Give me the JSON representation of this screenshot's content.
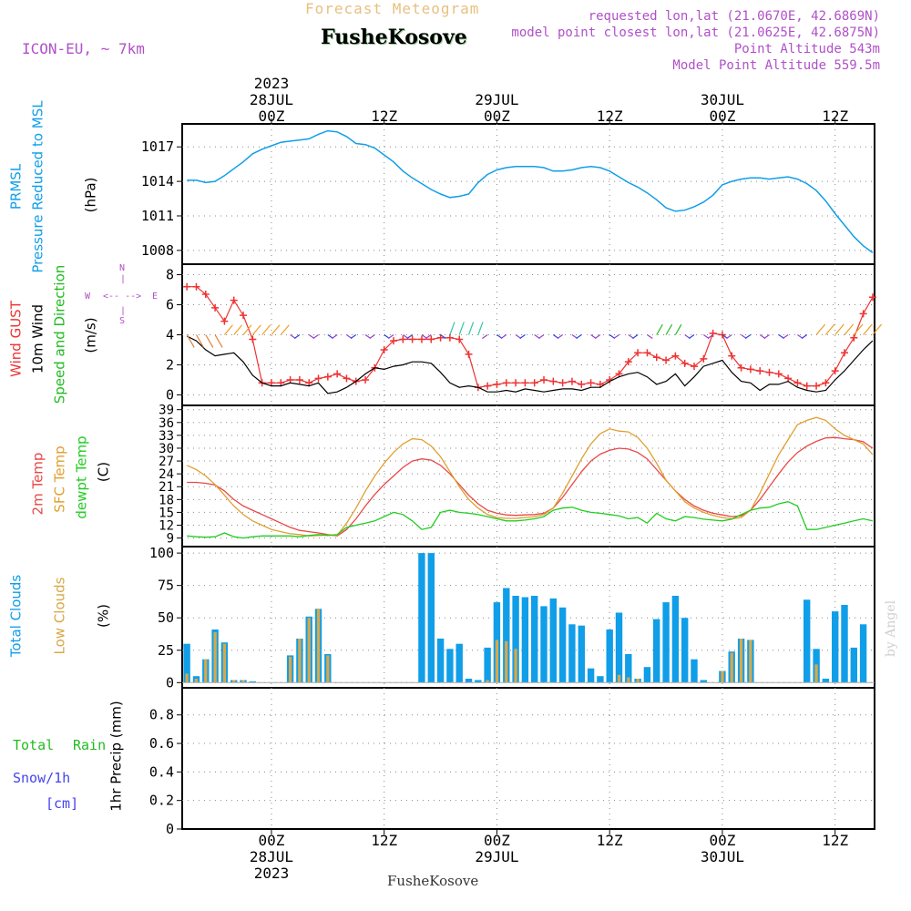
{
  "header": {
    "forecast_title": "Forecast Meteogram",
    "station": "FusheKosove",
    "model": "ICON-EU, ~ 7km",
    "requested": "requested lon,lat (21.0670E, 42.6869N)",
    "closest": "model point closest lon,lat (21.0625E, 42.6875N)",
    "point_alt": "Point Altitude 543m",
    "model_alt": "Model Point Altitude 559.5m",
    "credit": "by Angel"
  },
  "colors": {
    "pressure": "#109ee8",
    "gust": "#ee3333",
    "wind": "#000000",
    "dir_green": "#22bb22",
    "temp": "#e84848",
    "sfc": "#e0a030",
    "dew": "#22cc22",
    "total_clouds": "#109ee8",
    "low_clouds": "#d8a848",
    "rain": "#22bb22",
    "snow": "#4444ee",
    "model": "#b050c8",
    "title": "#e8c080"
  },
  "time_axis": {
    "top_labels": [
      {
        "t": 0,
        "lines": [
          "2023",
          "28JUL",
          "00Z"
        ]
      },
      {
        "t": 12,
        "lines": [
          "12Z"
        ]
      },
      {
        "t": 24,
        "lines": [
          "29JUL",
          "00Z"
        ]
      },
      {
        "t": 36,
        "lines": [
          "12Z"
        ]
      },
      {
        "t": 48,
        "lines": [
          "30JUL",
          "00Z"
        ]
      },
      {
        "t": 60,
        "lines": [
          "12Z"
        ]
      }
    ],
    "bottom_labels": [
      {
        "t": 0,
        "lines": [
          "00Z",
          "28JUL",
          "2023"
        ]
      },
      {
        "t": 12,
        "lines": [
          "12Z"
        ]
      },
      {
        "t": 24,
        "lines": [
          "00Z",
          "29JUL"
        ]
      },
      {
        "t": 36,
        "lines": [
          "12Z"
        ]
      },
      {
        "t": 48,
        "lines": [
          "00Z",
          "30JUL"
        ]
      },
      {
        "t": 60,
        "lines": [
          "12Z"
        ]
      }
    ],
    "bottom_station": "FusheKosove"
  },
  "panels": {
    "pressure": {
      "label1": "PRMSL",
      "label2": "Pressure Reduced to MSL",
      "unit": "(hPa)"
    },
    "wind": {
      "label_gust": "Wind GUST",
      "label_wind": "10m Wind",
      "label_dir": "Speed and Direction",
      "unit": "(m/s)",
      "compass_n": "N",
      "compass_s": "S",
      "compass_w": "W",
      "compass_e": "E",
      "compass_bar": "|",
      "compass_arrows": "<-- -->"
    },
    "temp": {
      "label1": "2m Temp",
      "label2": "SFC Temp",
      "label3": "dewpt Temp",
      "unit": "(C)"
    },
    "clouds": {
      "label1": "Total Clouds",
      "label2": "Low Clouds",
      "unit": "(%)"
    },
    "precip": {
      "label_total": "Total",
      "label_rain": "Rain",
      "label_snow": "Snow/1h",
      "label_cm": "[cm]",
      "unit": "1hr Precip (mm)"
    }
  },
  "chart_data": [
    {
      "type": "line",
      "ylabel": "(hPa)",
      "y_ticks": [
        "1008",
        "1011",
        "1014",
        "1017"
      ],
      "ylim": [
        1006.8,
        1019
      ],
      "x": [
        -9,
        -8,
        -7,
        -6,
        -5,
        -4,
        -3,
        -2,
        -1,
        0,
        1,
        2,
        3,
        4,
        5,
        6,
        7,
        8,
        9,
        10,
        11,
        12,
        13,
        14,
        15,
        16,
        17,
        18,
        19,
        20,
        21,
        22,
        23,
        24,
        25,
        26,
        27,
        28,
        29,
        30,
        31,
        32,
        33,
        34,
        35,
        36,
        37,
        38,
        39,
        40,
        41,
        42,
        43,
        44,
        45,
        46,
        47,
        48,
        49,
        50,
        51,
        52,
        53,
        54,
        55,
        56,
        57,
        58,
        59,
        60,
        61,
        62,
        63,
        64
      ],
      "series": [
        {
          "values": [
            1014.1,
            1014.1,
            1013.9,
            1014.0,
            1014.5,
            1015.1,
            1015.7,
            1016.4,
            1016.8,
            1017.1,
            1017.4,
            1017.5,
            1017.6,
            1017.7,
            1018.1,
            1018.4,
            1018.3,
            1017.9,
            1017.3,
            1017.2,
            1016.9,
            1016.3,
            1015.7,
            1014.9,
            1014.3,
            1013.8,
            1013.3,
            1012.9,
            1012.6,
            1012.7,
            1012.9,
            1013.9,
            1014.6,
            1015.0,
            1015.2,
            1015.3,
            1015.3,
            1015.3,
            1015.2,
            1014.9,
            1014.9,
            1015.0,
            1015.2,
            1015.3,
            1015.2,
            1014.9,
            1014.4,
            1013.9,
            1013.5,
            1013.0,
            1012.4,
            1011.7,
            1011.4,
            1011.5,
            1011.8,
            1012.2,
            1012.8,
            1013.7,
            1014.0,
            1014.2,
            1014.3,
            1014.3,
            1014.2,
            1014.3,
            1014.4,
            1014.2,
            1013.8,
            1013.2,
            1012.3,
            1011.2,
            1010.2,
            1009.2,
            1008.4,
            1007.8
          ]
        }
      ]
    },
    {
      "type": "line",
      "ylabel": "(m/s)",
      "y_ticks": [
        "0",
        "2",
        "4",
        "6",
        "8"
      ],
      "ylim": [
        -0.7,
        8.7
      ],
      "x": [
        -9,
        -8,
        -7,
        -6,
        -5,
        -4,
        -3,
        -2,
        -1,
        0,
        1,
        2,
        3,
        4,
        5,
        6,
        7,
        8,
        9,
        10,
        11,
        12,
        13,
        14,
        15,
        16,
        17,
        18,
        19,
        20,
        21,
        22,
        23,
        24,
        25,
        26,
        27,
        28,
        29,
        30,
        31,
        32,
        33,
        34,
        35,
        36,
        37,
        38,
        39,
        40,
        41,
        42,
        43,
        44,
        45,
        46,
        47,
        48,
        49,
        50,
        51,
        52,
        53,
        54,
        55,
        56,
        57,
        58,
        59,
        60,
        61,
        62,
        63,
        64
      ],
      "series": [
        {
          "name": "Wind GUST",
          "values": [
            7.2,
            7.2,
            6.7,
            5.8,
            4.9,
            6.3,
            5.3,
            3.7,
            0.8,
            0.8,
            0.8,
            1.0,
            1.0,
            0.8,
            1.1,
            1.2,
            1.4,
            1.1,
            0.9,
            1.0,
            1.8,
            3.0,
            3.6,
            3.7,
            3.7,
            3.7,
            3.7,
            3.8,
            3.8,
            3.7,
            2.7,
            0.5,
            0.6,
            0.7,
            0.8,
            0.8,
            0.8,
            0.8,
            1.0,
            0.9,
            0.8,
            0.9,
            0.7,
            0.8,
            0.7,
            1.0,
            1.4,
            2.2,
            2.8,
            2.8,
            2.5,
            2.3,
            2.6,
            2.1,
            1.9,
            2.4,
            4.1,
            4.0,
            2.6,
            1.8,
            1.7,
            1.6,
            1.5,
            1.4,
            1.1,
            0.8,
            0.6,
            0.6,
            0.8,
            1.6,
            2.8,
            3.8,
            5.4,
            6.5
          ]
        },
        {
          "name": "10m Wind",
          "values": [
            3.9,
            3.6,
            3.0,
            2.6,
            2.7,
            2.8,
            2.2,
            1.3,
            0.8,
            0.6,
            0.6,
            0.8,
            0.7,
            0.6,
            0.8,
            0.1,
            0.2,
            0.5,
            0.9,
            1.4,
            1.8,
            1.7,
            1.9,
            2.0,
            2.2,
            2.2,
            2.1,
            1.5,
            0.8,
            0.5,
            0.6,
            0.5,
            0.2,
            0.2,
            0.3,
            0.2,
            0.4,
            0.3,
            0.2,
            0.3,
            0.4,
            0.4,
            0.3,
            0.5,
            0.5,
            0.9,
            1.2,
            1.4,
            1.5,
            1.2,
            0.7,
            0.9,
            1.4,
            0.6,
            1.2,
            1.9,
            2.1,
            2.3,
            1.5,
            0.9,
            0.8,
            0.3,
            0.7,
            0.7,
            0.9,
            0.5,
            0.3,
            0.2,
            0.3,
            1.0,
            1.6,
            2.3,
            3.0,
            3.6
          ]
        }
      ]
    },
    {
      "type": "line",
      "ylabel": "(C)",
      "y_ticks": [
        "9",
        "12",
        "15",
        "18",
        "21",
        "24",
        "27",
        "30",
        "33",
        "36",
        "39"
      ],
      "ylim": [
        7,
        40
      ],
      "x": [
        -9,
        -8,
        -7,
        -6,
        -5,
        -4,
        -3,
        -2,
        -1,
        0,
        1,
        2,
        3,
        4,
        5,
        6,
        7,
        8,
        9,
        10,
        11,
        12,
        13,
        14,
        15,
        16,
        17,
        18,
        19,
        20,
        21,
        22,
        23,
        24,
        25,
        26,
        27,
        28,
        29,
        30,
        31,
        32,
        33,
        34,
        35,
        36,
        37,
        38,
        39,
        40,
        41,
        42,
        43,
        44,
        45,
        46,
        47,
        48,
        49,
        50,
        51,
        52,
        53,
        54,
        55,
        56,
        57,
        58,
        59,
        60,
        61,
        62,
        63,
        64
      ],
      "series": [
        {
          "name": "2m Temp",
          "values": [
            22.0,
            22.0,
            21.8,
            21.4,
            20.0,
            18.0,
            16.5,
            15.5,
            14.5,
            13.5,
            12.5,
            11.5,
            10.8,
            10.5,
            10.2,
            9.8,
            9.5,
            11.0,
            13.5,
            16.5,
            19.2,
            21.5,
            23.5,
            25.5,
            27.0,
            27.5,
            27.2,
            26.0,
            24.0,
            21.5,
            19.0,
            17.0,
            15.5,
            14.8,
            14.4,
            14.3,
            14.4,
            14.5,
            14.8,
            16.0,
            18.5,
            21.5,
            24.5,
            27.0,
            28.6,
            29.5,
            30.0,
            29.8,
            29.0,
            27.5,
            25.0,
            22.5,
            20.0,
            18.0,
            16.5,
            15.5,
            14.8,
            14.4,
            14.0,
            14.2,
            15.5,
            18.0,
            21.0,
            24.0,
            26.8,
            29.0,
            30.5,
            31.6,
            32.4,
            32.5,
            32.2,
            32.0,
            31.5,
            30.0
          ]
        },
        {
          "name": "SFC Temp",
          "values": [
            26.0,
            25.0,
            23.5,
            21.5,
            19.0,
            16.5,
            14.5,
            13.0,
            12.0,
            11.0,
            10.5,
            10.0,
            9.8,
            9.5,
            9.6,
            9.7,
            9.6,
            12.5,
            16.0,
            20.0,
            23.5,
            26.5,
            29.0,
            31.0,
            32.2,
            32.0,
            30.5,
            28.0,
            24.5,
            21.0,
            18.0,
            16.0,
            14.5,
            13.8,
            13.6,
            13.6,
            13.8,
            14.0,
            14.5,
            16.0,
            19.5,
            23.5,
            27.5,
            31.0,
            33.4,
            34.5,
            34.0,
            33.8,
            32.5,
            30.0,
            26.5,
            22.5,
            20.0,
            17.5,
            16.0,
            15.0,
            14.3,
            13.8,
            13.5,
            13.8,
            15.5,
            19.5,
            24.0,
            28.5,
            32.0,
            35.5,
            36.5,
            37.2,
            36.5,
            34.5,
            33.0,
            32.0,
            31.0,
            28.5
          ]
        },
        {
          "name": "dewpt Temp",
          "values": [
            9.5,
            9.3,
            9.2,
            9.3,
            10.2,
            9.3,
            9.0,
            9.3,
            9.5,
            9.5,
            9.5,
            9.5,
            9.3,
            9.6,
            9.8,
            9.6,
            9.8,
            11.5,
            12.0,
            12.5,
            13.0,
            14.0,
            15.0,
            14.5,
            13.0,
            11.0,
            11.5,
            15.0,
            15.5,
            15.0,
            14.8,
            14.5,
            14.0,
            13.5,
            13.0,
            13.0,
            13.2,
            13.5,
            14.0,
            15.5,
            16.0,
            16.2,
            15.5,
            15.0,
            14.8,
            14.5,
            14.2,
            13.5,
            13.8,
            12.5,
            14.8,
            13.5,
            13.0,
            14.0,
            13.8,
            13.4,
            13.2,
            13.0,
            13.4,
            14.5,
            15.5,
            16.0,
            16.2,
            17.0,
            17.5,
            16.5,
            11.0,
            11.0,
            11.5,
            12.0,
            12.5,
            13.0,
            13.5,
            13.0
          ]
        }
      ]
    },
    {
      "type": "bar",
      "ylabel": "(%)",
      "y_ticks": [
        "0",
        "25",
        "50",
        "75",
        "100"
      ],
      "ylim": [
        -4,
        105
      ],
      "x": [
        -9,
        -8,
        -7,
        -6,
        -5,
        -4,
        -3,
        -2,
        -1,
        0,
        1,
        2,
        3,
        4,
        5,
        6,
        7,
        8,
        9,
        10,
        11,
        12,
        13,
        14,
        15,
        16,
        17,
        18,
        19,
        20,
        21,
        22,
        23,
        24,
        25,
        26,
        27,
        28,
        29,
        30,
        31,
        32,
        33,
        34,
        35,
        36,
        37,
        38,
        39,
        40,
        41,
        42,
        43,
        44,
        45,
        46,
        47,
        48,
        49,
        50,
        51,
        52,
        53,
        54,
        55,
        56,
        57,
        58,
        59,
        60,
        61,
        62,
        63,
        64
      ],
      "series": [
        {
          "name": "Total Clouds",
          "values": [
            30,
            5,
            18,
            41,
            31,
            2,
            2,
            1,
            0,
            0,
            0,
            21,
            34,
            51,
            57,
            22,
            0,
            0,
            0,
            0,
            0,
            0,
            0,
            0,
            0,
            100,
            100,
            34,
            26,
            30,
            3,
            2,
            27,
            62,
            73,
            67,
            66,
            67,
            59,
            65,
            58,
            45,
            44,
            11,
            5,
            41,
            54,
            22,
            3,
            12,
            49,
            62,
            67,
            50,
            18,
            2,
            0,
            9,
            24,
            34,
            33,
            0,
            0,
            0,
            0,
            0,
            64,
            26,
            3,
            55,
            60,
            27,
            45,
            0
          ]
        },
        {
          "name": "Low Clouds",
          "values": [
            7,
            3,
            18,
            39,
            30,
            2,
            2,
            0,
            0,
            0,
            0,
            20,
            34,
            50,
            57,
            21,
            0,
            0,
            0,
            0,
            0,
            0,
            0,
            0,
            0,
            0,
            0,
            0,
            0,
            0,
            0,
            0,
            2,
            33,
            32,
            26,
            0,
            0,
            0,
            0,
            0,
            0,
            0,
            0,
            0,
            0,
            6,
            4,
            3,
            0,
            0,
            0,
            0,
            0,
            0,
            0,
            0,
            9,
            23,
            34,
            33,
            0,
            0,
            0,
            0,
            0,
            0,
            14,
            0,
            0,
            0,
            0,
            0,
            0
          ]
        }
      ]
    },
    {
      "type": "line",
      "ylabel": "1hr Precip (mm)",
      "y_ticks": [
        "0",
        "0.2",
        "0.4",
        "0.6",
        "0.8"
      ],
      "ylim": [
        0,
        0.99
      ],
      "x": [
        -9,
        64
      ],
      "series": [
        {
          "name": "Total Rain",
          "values": [
            0,
            0
          ]
        }
      ]
    }
  ]
}
